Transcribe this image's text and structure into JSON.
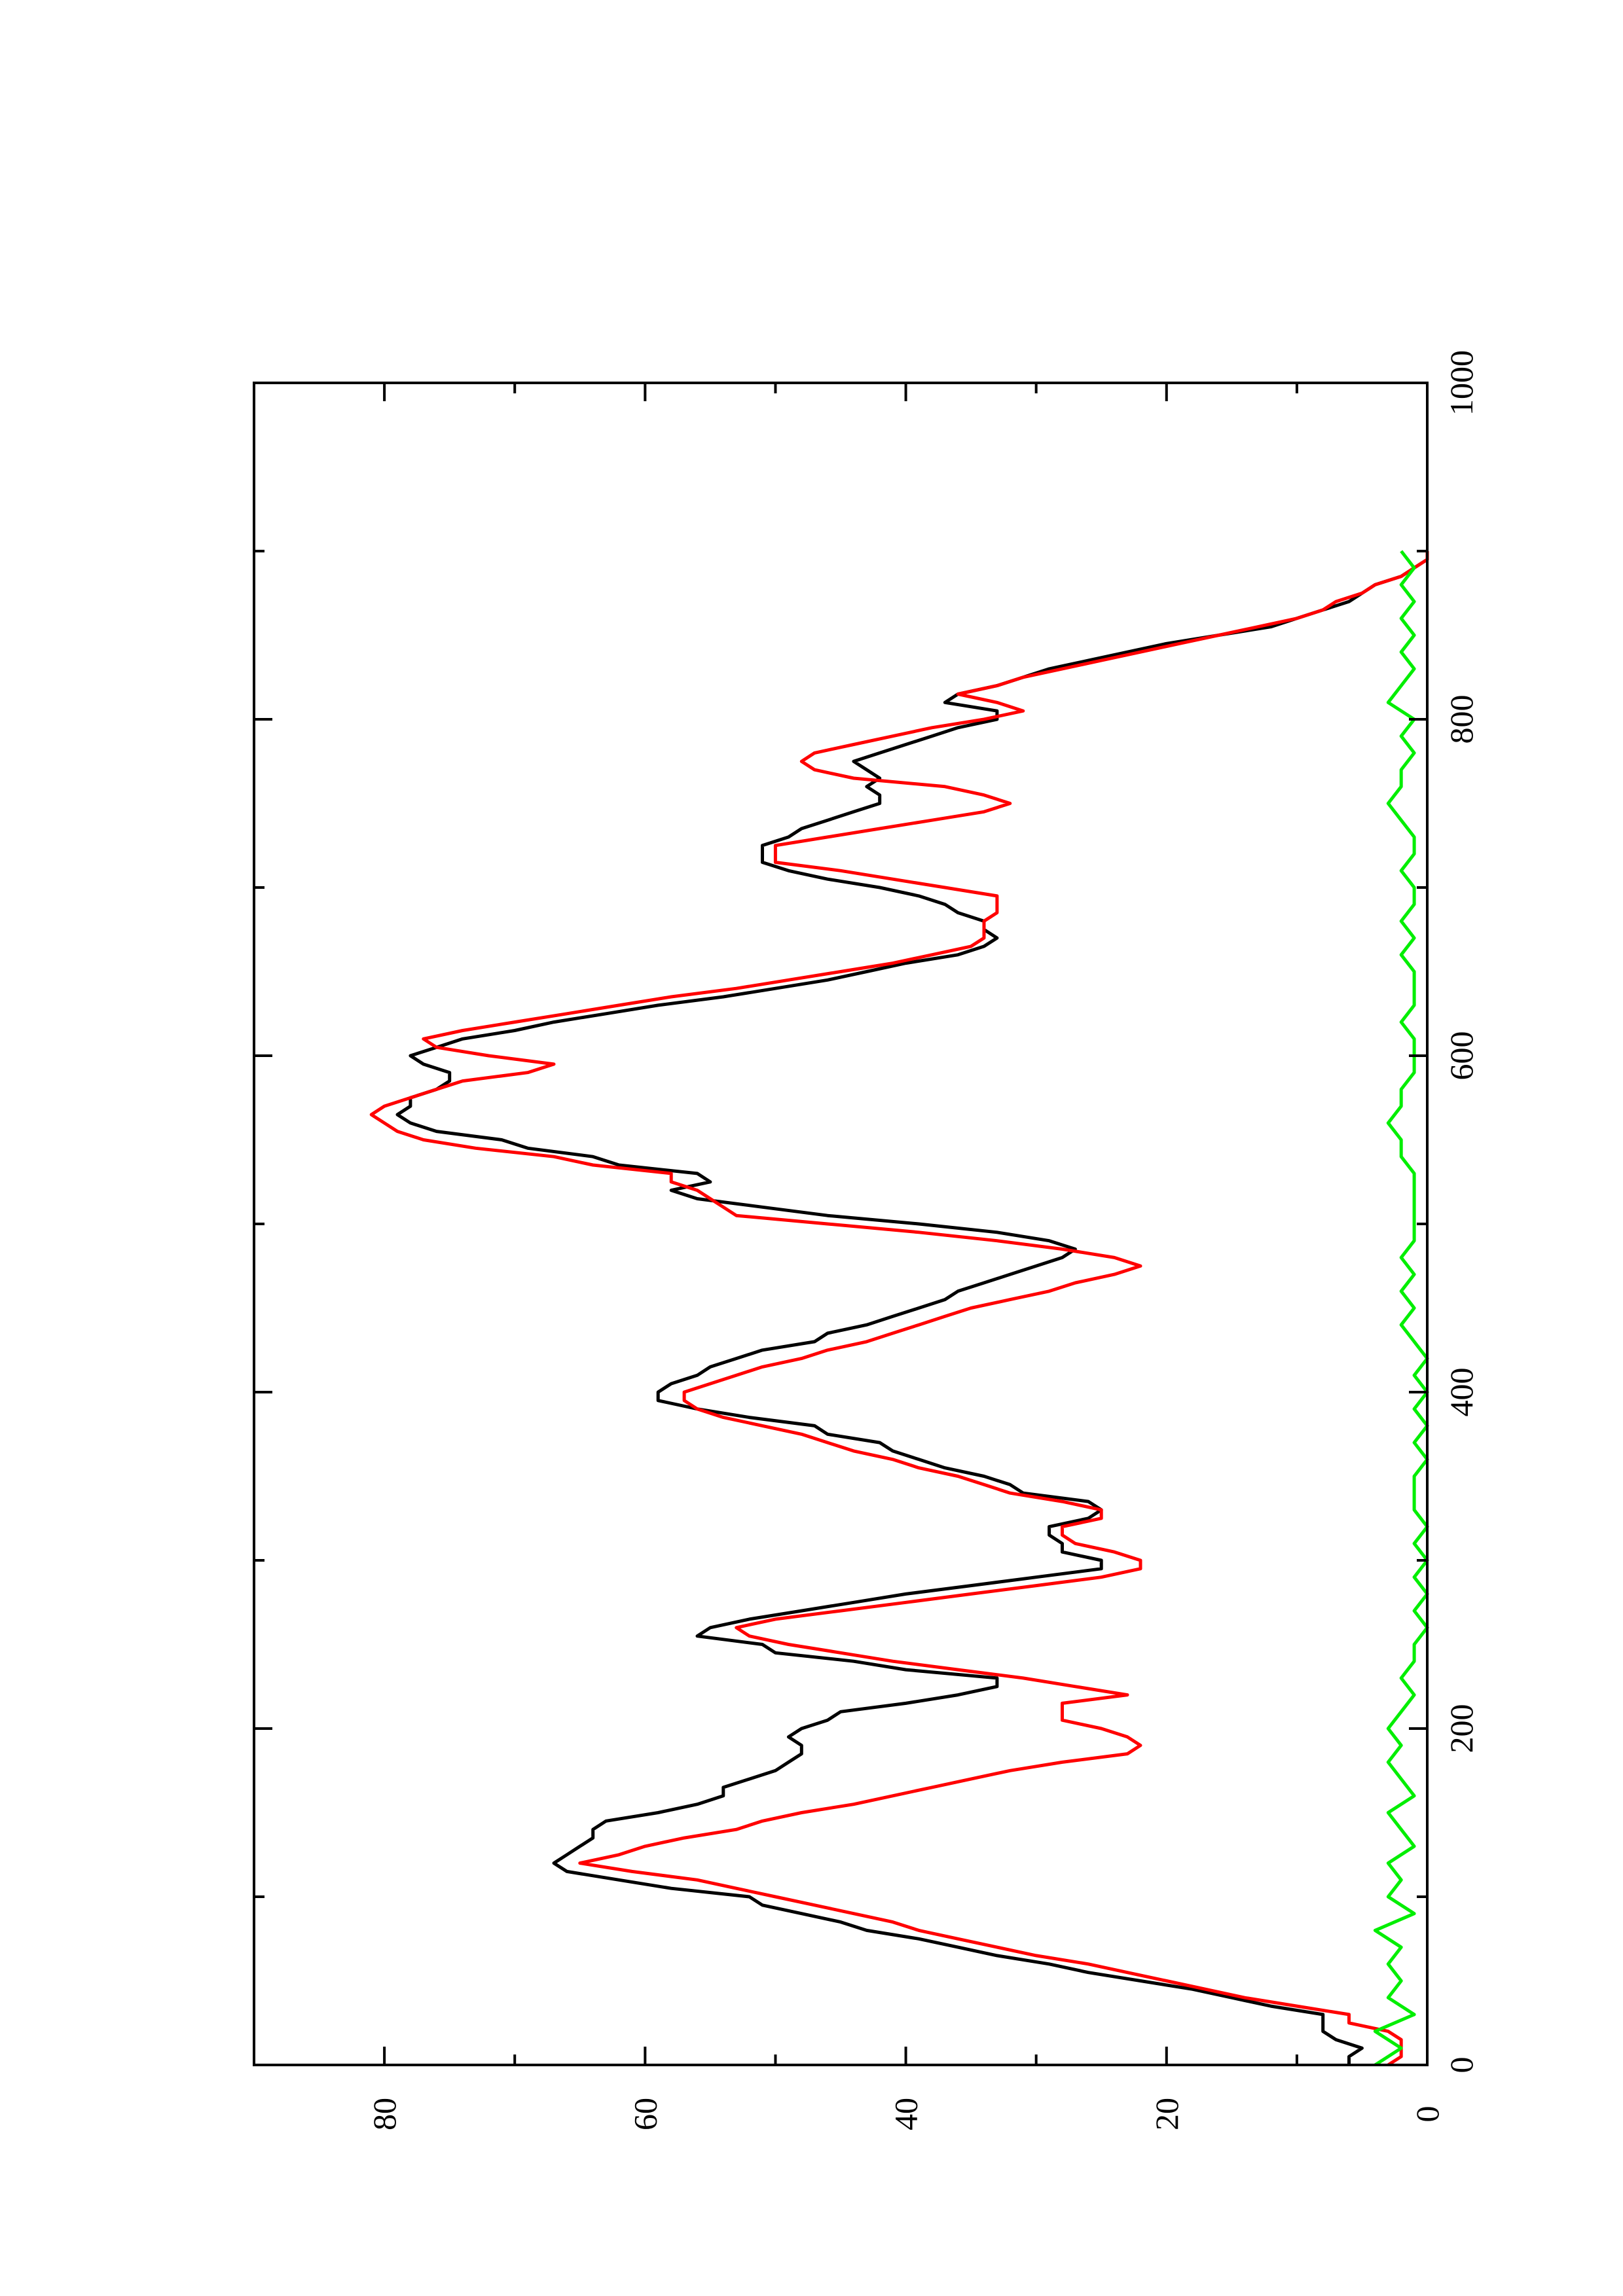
{
  "chart_data": {
    "type": "line",
    "orientation": "rotated-90-ccw",
    "title": "",
    "xlabel": "",
    "ylabel": "",
    "xlim": [
      0,
      1000
    ],
    "ylim": [
      0,
      90
    ],
    "x_ticks": [
      0,
      200,
      400,
      600,
      800,
      1000
    ],
    "x_tick_labels": [
      "0",
      "200",
      "400",
      "600",
      "800",
      "1000"
    ],
    "x_minor_ticks": [
      100,
      300,
      500,
      700,
      900
    ],
    "y_ticks": [
      0,
      20,
      40,
      60,
      80
    ],
    "y_tick_labels": [
      "0",
      "20",
      "40",
      "60",
      "80"
    ],
    "y_minor_ticks": [
      10,
      30,
      50,
      70
    ],
    "grid": false,
    "legend": "none",
    "series": [
      {
        "color": "#000000",
        "x": [
          0,
          5,
          10,
          15,
          20,
          25,
          30,
          35,
          40,
          45,
          50,
          55,
          60,
          65,
          70,
          75,
          80,
          85,
          90,
          95,
          100,
          105,
          110,
          115,
          120,
          125,
          130,
          135,
          140,
          145,
          150,
          155,
          160,
          165,
          170,
          175,
          180,
          185,
          190,
          195,
          200,
          205,
          210,
          215,
          220,
          225,
          230,
          235,
          240,
          245,
          250,
          255,
          260,
          265,
          270,
          275,
          280,
          285,
          290,
          295,
          300,
          305,
          310,
          315,
          320,
          325,
          330,
          335,
          340,
          345,
          350,
          355,
          360,
          365,
          370,
          375,
          380,
          385,
          390,
          395,
          400,
          405,
          410,
          415,
          420,
          425,
          430,
          435,
          440,
          445,
          450,
          455,
          460,
          465,
          470,
          475,
          480,
          485,
          490,
          495,
          500,
          505,
          510,
          515,
          520,
          525,
          530,
          535,
          540,
          545,
          550,
          555,
          560,
          565,
          570,
          575,
          580,
          585,
          590,
          595,
          600,
          605,
          610,
          615,
          620,
          625,
          630,
          635,
          640,
          645,
          650,
          655,
          660,
          665,
          670,
          675,
          680,
          685,
          690,
          695,
          700,
          705,
          710,
          715,
          720,
          725,
          730,
          735,
          740,
          745,
          750,
          755,
          760,
          765,
          770,
          775,
          780,
          785,
          790,
          795,
          800,
          805,
          810,
          815,
          820,
          825,
          830,
          835,
          840,
          845,
          850,
          855,
          860,
          865,
          870,
          875,
          880,
          885,
          890,
          895,
          900
        ],
        "y": [
          6,
          6,
          5,
          7,
          8,
          8,
          8,
          12,
          15,
          18,
          22,
          26,
          29,
          33,
          36,
          39,
          43,
          45,
          48,
          51,
          52,
          58,
          62,
          66,
          67,
          66,
          65,
          64,
          64,
          63,
          59,
          56,
          54,
          54,
          52,
          50,
          49,
          48,
          48,
          49,
          48,
          46,
          45,
          40,
          36,
          33,
          33,
          40,
          44,
          50,
          51,
          56,
          55,
          52,
          48,
          44,
          40,
          35,
          30,
          25,
          25,
          28,
          28,
          29,
          29,
          26,
          25,
          26,
          31,
          32,
          34,
          37,
          39,
          41,
          42,
          46,
          47,
          52,
          56,
          59,
          59,
          58,
          56,
          55,
          53,
          51,
          47,
          46,
          43,
          41,
          39,
          37,
          36,
          34,
          32,
          30,
          28,
          27,
          29,
          33,
          39,
          46,
          51,
          56,
          58,
          55,
          56,
          62,
          64,
          69,
          71,
          76,
          78,
          79,
          78,
          78,
          76,
          75,
          75,
          77,
          78,
          76,
          74,
          70,
          67,
          63,
          59,
          54,
          50,
          46,
          43,
          40,
          36,
          34,
          33,
          34,
          34,
          36,
          37,
          39,
          42,
          46,
          49,
          51,
          51,
          51,
          49,
          48,
          46,
          44,
          42,
          42,
          43,
          42,
          43,
          44,
          42,
          40,
          38,
          36,
          33,
          33,
          37,
          36,
          33,
          31,
          29,
          26,
          23,
          20,
          16,
          12,
          10,
          8,
          6,
          5,
          4,
          2,
          1,
          0,
          0
        ]
      },
      {
        "color": "#ff0000",
        "x": [
          0,
          5,
          10,
          15,
          20,
          25,
          30,
          35,
          40,
          45,
          50,
          55,
          60,
          65,
          70,
          75,
          80,
          85,
          90,
          95,
          100,
          105,
          110,
          115,
          120,
          125,
          130,
          135,
          140,
          145,
          150,
          155,
          160,
          165,
          170,
          175,
          180,
          185,
          190,
          195,
          200,
          205,
          210,
          215,
          220,
          225,
          230,
          235,
          240,
          245,
          250,
          255,
          260,
          265,
          270,
          275,
          280,
          285,
          290,
          295,
          300,
          305,
          310,
          315,
          320,
          325,
          330,
          335,
          340,
          345,
          350,
          355,
          360,
          365,
          370,
          375,
          380,
          385,
          390,
          395,
          400,
          405,
          410,
          415,
          420,
          425,
          430,
          435,
          440,
          445,
          450,
          455,
          460,
          465,
          470,
          475,
          480,
          485,
          490,
          495,
          500,
          505,
          510,
          515,
          520,
          525,
          530,
          535,
          540,
          545,
          550,
          555,
          560,
          565,
          570,
          575,
          580,
          585,
          590,
          595,
          600,
          605,
          610,
          615,
          620,
          625,
          630,
          635,
          640,
          645,
          650,
          655,
          660,
          665,
          670,
          675,
          680,
          685,
          690,
          695,
          700,
          705,
          710,
          715,
          720,
          725,
          730,
          735,
          740,
          745,
          750,
          755,
          760,
          765,
          770,
          775,
          780,
          785,
          790,
          795,
          800,
          805,
          810,
          815,
          820,
          825,
          830,
          835,
          840,
          845,
          850,
          855,
          860,
          865,
          870,
          875,
          880,
          885,
          890,
          895,
          900
        ],
        "y": [
          3,
          2,
          2,
          2,
          3,
          6,
          6,
          10,
          14,
          17,
          20,
          23,
          26,
          30,
          33,
          36,
          39,
          41,
          44,
          47,
          50,
          53,
          56,
          61,
          65,
          62,
          60,
          57,
          53,
          51,
          48,
          44,
          41,
          38,
          35,
          32,
          28,
          23,
          22,
          23,
          25,
          28,
          28,
          28,
          23,
          27,
          31,
          36,
          41,
          45,
          49,
          52,
          53,
          50,
          45,
          40,
          35,
          30,
          25,
          22,
          22,
          24,
          27,
          28,
          28,
          25,
          25,
          28,
          32,
          34,
          36,
          39,
          41,
          44,
          46,
          48,
          51,
          54,
          56,
          57,
          57,
          55,
          53,
          51,
          48,
          46,
          43,
          41,
          39,
          37,
          35,
          32,
          29,
          27,
          24,
          22,
          24,
          28,
          33,
          39,
          46,
          53,
          54,
          55,
          56,
          58,
          58,
          64,
          67,
          73,
          77,
          79,
          80,
          81,
          80,
          78,
          76,
          74,
          69,
          67,
          72,
          76,
          77,
          74,
          70,
          66,
          62,
          58,
          53,
          49,
          45,
          41,
          38,
          35,
          34,
          34,
          34,
          33,
          33,
          33,
          37,
          41,
          45,
          50,
          50,
          50,
          46,
          42,
          38,
          34,
          32,
          34,
          37,
          44,
          47,
          48,
          47,
          44,
          41,
          38,
          34,
          31,
          33,
          36,
          33,
          31,
          28,
          25,
          22,
          19,
          16,
          13,
          10,
          8,
          7,
          5,
          4,
          2,
          1,
          0,
          0
        ]
      },
      {
        "color": "#00ee00",
        "x": [
          0,
          10,
          20,
          30,
          40,
          50,
          60,
          70,
          80,
          90,
          100,
          110,
          120,
          130,
          140,
          150,
          160,
          170,
          180,
          190,
          200,
          210,
          220,
          230,
          240,
          250,
          260,
          270,
          280,
          290,
          300,
          310,
          320,
          330,
          340,
          350,
          360,
          370,
          380,
          390,
          400,
          410,
          420,
          430,
          440,
          450,
          460,
          470,
          480,
          490,
          500,
          510,
          520,
          530,
          540,
          550,
          560,
          570,
          580,
          590,
          600,
          610,
          620,
          630,
          640,
          650,
          660,
          670,
          680,
          690,
          700,
          710,
          720,
          730,
          740,
          750,
          760,
          770,
          780,
          790,
          800,
          810,
          820,
          830,
          840,
          850,
          860,
          870,
          880,
          890,
          900
        ],
        "y": [
          4,
          2,
          4,
          1,
          3,
          2,
          3,
          2,
          4,
          1,
          3,
          2,
          3,
          1,
          2,
          3,
          1,
          2,
          3,
          2,
          3,
          2,
          1,
          2,
          1,
          1,
          0,
          1,
          0,
          1,
          0,
          1,
          0,
          1,
          1,
          1,
          0,
          1,
          0,
          1,
          0,
          1,
          0,
          1,
          2,
          1,
          2,
          1,
          2,
          1,
          1,
          1,
          1,
          1,
          2,
          2,
          3,
          2,
          2,
          1,
          1,
          1,
          2,
          1,
          1,
          1,
          2,
          1,
          2,
          1,
          1,
          2,
          1,
          1,
          2,
          3,
          2,
          2,
          1,
          2,
          1,
          3,
          2,
          1,
          2,
          1,
          2,
          1,
          2,
          1,
          2
        ]
      }
    ]
  }
}
